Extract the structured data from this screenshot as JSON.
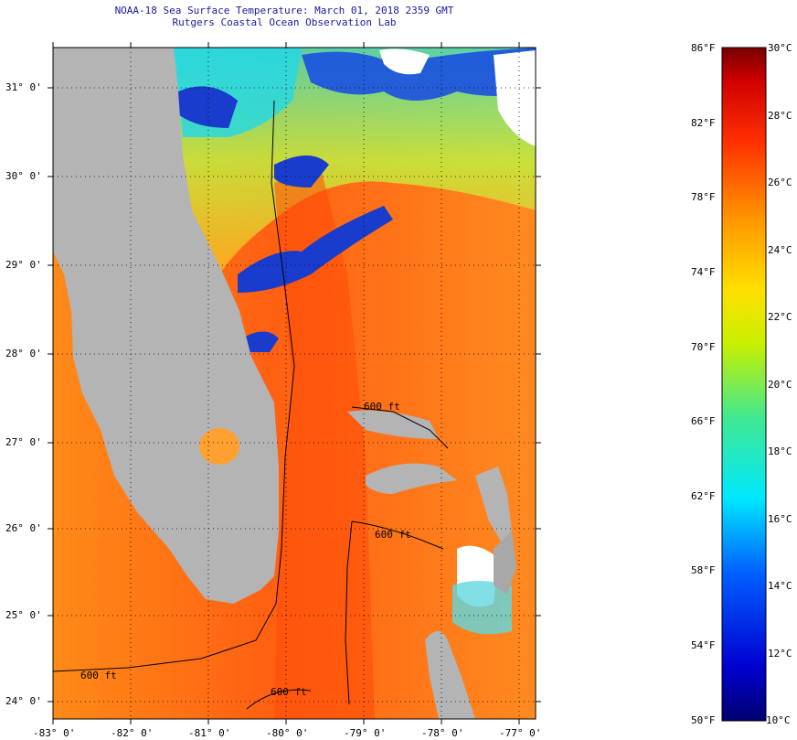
{
  "header": {
    "line1": "NOAA-18 Sea Surface Temperature:  March 01, 2018 2359 GMT",
    "line2": "Rutgers Coastal Ocean Observation Lab"
  },
  "axes": {
    "lat_labels": [
      "31° 0'",
      "30° 0'",
      "29° 0'",
      "28° 0'",
      "27° 0'",
      "26° 0'",
      "25° 0'",
      "24° 0'"
    ],
    "lon_labels": [
      "-83° 0'",
      "-82° 0'",
      "-81° 0'",
      "-80° 0'",
      "-79° 0'",
      "-78° 0'",
      "-77° 0'"
    ]
  },
  "isobaths": [
    "600 ft",
    "600 ft",
    "600 ft",
    "600 ft"
  ],
  "colorbar": {
    "fahrenheit": [
      "86°F",
      "82°F",
      "78°F",
      "74°F",
      "70°F",
      "66°F",
      "62°F",
      "58°F",
      "54°F",
      "50°F"
    ],
    "celsius": [
      "30°C",
      "28°C",
      "26°C",
      "24°C",
      "22°C",
      "20°C",
      "18°C",
      "16°C",
      "14°C",
      "12°C",
      "10°C"
    ]
  },
  "colors": {
    "land": "#b4b4b4",
    "warm_sea": "#ff6a10",
    "cold_sea": "#1a3ccc",
    "cloud": "#ffffff"
  }
}
